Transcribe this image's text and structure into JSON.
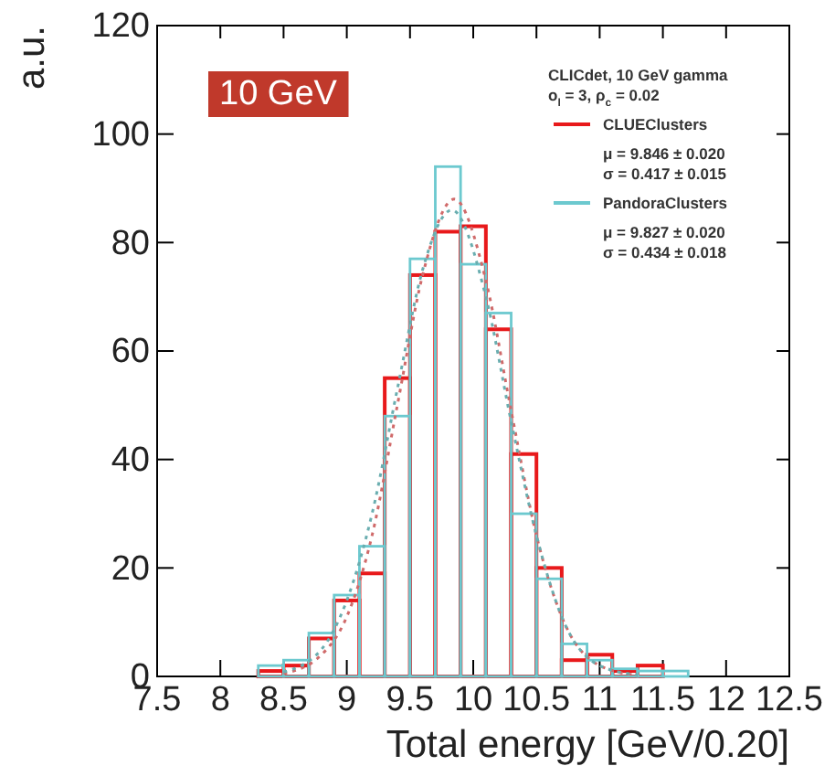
{
  "chart_data": {
    "type": "histogram",
    "xlabel": "Total energy [GeV/0.20]",
    "ylabel": "a.u.",
    "bins": [
      8.3,
      8.5,
      8.7,
      8.9,
      9.1,
      9.3,
      9.5,
      9.7,
      9.9,
      10.1,
      10.3,
      10.5,
      10.7,
      10.9,
      11.1,
      11.3,
      11.5,
      11.7
    ],
    "series": [
      {
        "name": "CLUEClusters",
        "color": "#e8191b",
        "values": [
          1,
          2,
          7,
          14,
          19,
          55,
          74,
          82,
          83,
          64,
          41,
          20,
          3,
          4,
          1,
          2,
          0
        ]
      },
      {
        "name": "PandoraClusters",
        "color": "#6cc9cf",
        "values": [
          2,
          3,
          8,
          15,
          24,
          48,
          77,
          94,
          76,
          67,
          30,
          18,
          6,
          3,
          1.4,
          1,
          1
        ]
      },
      {
        "type": "line",
        "color": "#d06a6a",
        "line_style": "dotted",
        "x": [
          8.5,
          8.8,
          9.0,
          9.2,
          9.4,
          9.6,
          9.85,
          10.1,
          10.3,
          10.5,
          10.7,
          11.0,
          11.3
        ],
        "values": [
          0.5,
          4,
          11,
          26,
          50,
          74,
          88,
          73,
          49,
          26,
          11,
          2,
          0.2
        ]
      },
      {
        "type": "line",
        "color": "#6aaeb0",
        "line_style": "dotted",
        "x": [
          8.5,
          8.8,
          9.0,
          9.2,
          9.4,
          9.6,
          9.83,
          10.1,
          10.3,
          10.5,
          10.7,
          11.0,
          11.3
        ],
        "values": [
          0.8,
          5,
          14,
          30,
          53,
          75,
          86,
          70,
          47,
          26,
          11,
          2,
          0.3
        ]
      }
    ],
    "annotations": [
      "10 GeV",
      "CLICdet, 10 GeV gamma",
      "o$_{l}$ = 3, ρ$_{c}$ = 0.02",
      "μ = 9.846 ± 0.020",
      "σ = 0.417 ± 0.015",
      "μ = 9.827 ± 0.020",
      "σ = 0.434 ± 0.018"
    ],
    "xlim": [
      7.5,
      12.5
    ],
    "xticks": [
      7.5,
      8,
      8.5,
      9,
      9.5,
      10,
      10.5,
      11,
      11.5,
      12,
      12.5
    ],
    "ylim": [
      0,
      120
    ],
    "yticks": [
      0,
      20,
      40,
      60,
      80,
      100,
      120
    ],
    "grid": false,
    "legend": "top right"
  }
}
